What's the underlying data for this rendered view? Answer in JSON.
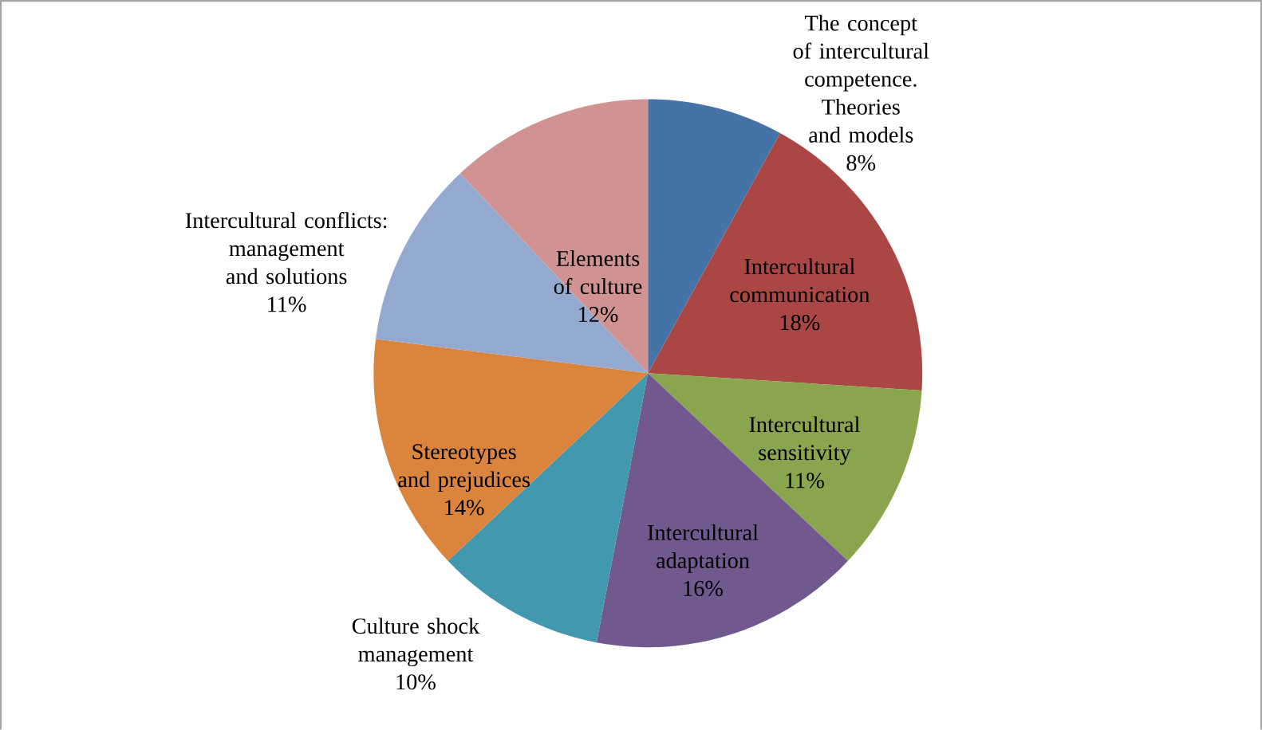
{
  "chart_data": {
    "type": "pie",
    "categories": [
      "The concept of intercultural competence. Theories and models",
      "Intercultural communication",
      "Intercultural sensitivity",
      "Intercultural adaptation",
      "Culture shock management",
      "Stereotypes and prejudices",
      "Intercultural conflicts: management and solutions",
      "Elements of culture"
    ],
    "values": [
      8,
      18,
      11,
      16,
      10,
      14,
      11,
      12
    ],
    "value_labels": [
      "8%",
      "18%",
      "11%",
      "16%",
      "10%",
      "14%",
      "11%",
      "12%"
    ],
    "colors": [
      "#4572a7",
      "#aa4643",
      "#89a54e",
      "#71588f",
      "#4198af",
      "#db843d",
      "#93a9cf",
      "#d19392"
    ]
  }
}
